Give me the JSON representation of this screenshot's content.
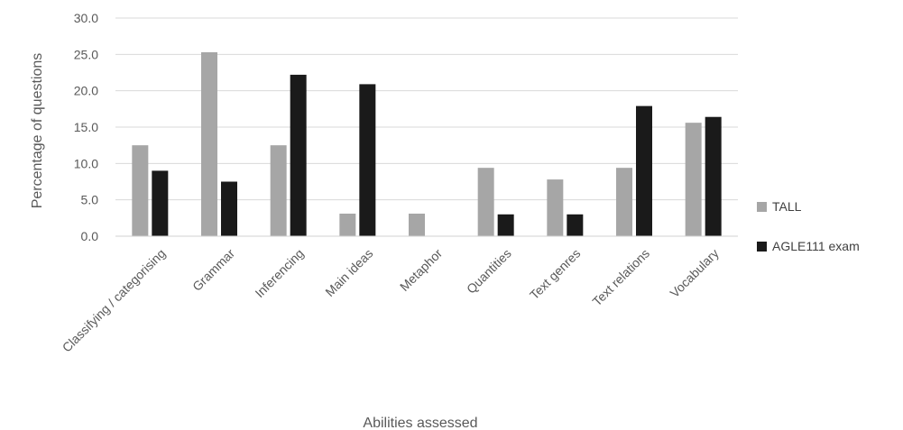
{
  "chart_data": {
    "type": "bar",
    "title": "",
    "xlabel": "Abilities assessed",
    "ylabel": "Percentage of questions",
    "ylim": [
      0,
      30
    ],
    "yticks": [
      "0.0",
      "5.0",
      "10.0",
      "15.0",
      "20.0",
      "25.0",
      "30.0"
    ],
    "grid": true,
    "legend_position": "right",
    "categories": [
      "Classifying / categorising",
      "Grammar",
      "Inferencing",
      "Main ideas",
      "Metaphor",
      "Quantities",
      "Text genres",
      "Text relations",
      "Vocabulary"
    ],
    "series": [
      {
        "name": "TALL",
        "color": "#a6a6a6",
        "values": [
          12.5,
          25.3,
          12.5,
          3.1,
          3.1,
          9.4,
          7.8,
          9.4,
          15.6
        ]
      },
      {
        "name": "AGLE111 exam",
        "color": "#1a1a1a",
        "values": [
          9.0,
          7.5,
          22.2,
          20.9,
          0,
          3.0,
          3.0,
          17.9,
          16.4
        ]
      }
    ]
  }
}
